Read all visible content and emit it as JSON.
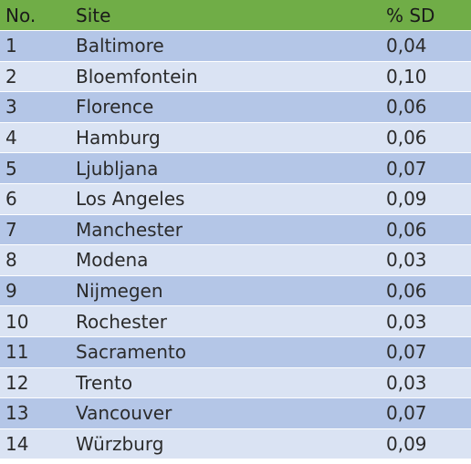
{
  "header": {
    "no": "No.",
    "site": "Site",
    "sd": "% SD"
  },
  "rows": [
    {
      "no": "1",
      "site": "Baltimore",
      "sd": "0,04"
    },
    {
      "no": "2",
      "site": "Bloemfontein",
      "sd": "0,10"
    },
    {
      "no": "3",
      "site": "Florence",
      "sd": "0,06"
    },
    {
      "no": "4",
      "site": "Hamburg",
      "sd": "0,06"
    },
    {
      "no": "5",
      "site": "Ljubljana",
      "sd": "0,07"
    },
    {
      "no": "6",
      "site": "Los Angeles",
      "sd": "0,09"
    },
    {
      "no": "7",
      "site": "Manchester",
      "sd": "0,06"
    },
    {
      "no": "8",
      "site": "Modena",
      "sd": "0,03"
    },
    {
      "no": "9",
      "site": "Nijmegen",
      "sd": "0,06"
    },
    {
      "no": "10",
      "site": "Rochester",
      "sd": "0,03"
    },
    {
      "no": "11",
      "site": "Sacramento",
      "sd": "0,07"
    },
    {
      "no": "12",
      "site": "Trento",
      "sd": "0,03"
    },
    {
      "no": "13",
      "site": "Vancouver",
      "sd": "0,07"
    },
    {
      "no": "14",
      "site": "Würzburg",
      "sd": "0,09"
    }
  ],
  "colors": {
    "header": "#70ad47",
    "row_dark": "#b4c6e7",
    "row_light": "#dae3f3"
  }
}
